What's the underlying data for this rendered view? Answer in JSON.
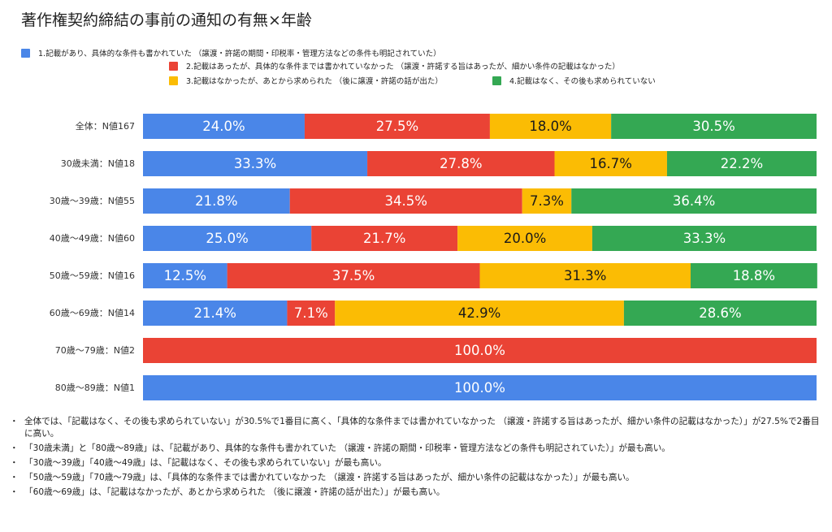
{
  "colors": {
    "blue": "#4a86e8",
    "red": "#ea4335",
    "yellow": "#fbbc04",
    "green": "#34a853"
  },
  "chart_data": {
    "type": "bar",
    "orientation": "horizontal-stacked",
    "title": "著作権契約締結の事前の通知の有無×年齢",
    "categories": [
      "全体：N値167",
      "30歳未満：N値18",
      "30歳〜39歳：N値55",
      "40歳〜49歳：N値60",
      "50歳〜59歳：N値16",
      "60歳〜69歳：N値14",
      "70歳〜79歳：N値2",
      "80歳〜89歳：N値1"
    ],
    "series": [
      {
        "name": "1.記載があり、具体的な条件も書かれていた （譲渡・許諾の期間・印税率・管理方法などの条件も明記されていた）",
        "color": "#4a86e8",
        "values": [
          24.0,
          33.3,
          21.8,
          25.0,
          12.5,
          21.4,
          0,
          100.0
        ]
      },
      {
        "name": "2.記載はあったが、具体的な条件までは書かれていなかった （譲渡・許諾する旨はあったが、細かい条件の記載はなかった）",
        "color": "#ea4335",
        "values": [
          27.5,
          27.8,
          34.5,
          21.7,
          37.5,
          7.1,
          100.0,
          0
        ]
      },
      {
        "name": "3.記載はなかったが、あとから求められた （後に譲渡・許諾の話が出た）",
        "color": "#fbbc04",
        "values": [
          18.0,
          16.7,
          7.3,
          20.0,
          31.3,
          42.9,
          0,
          0
        ]
      },
      {
        "name": "4.記載はなく、その後も求められていない",
        "color": "#34a853",
        "values": [
          30.5,
          22.2,
          36.4,
          33.3,
          18.8,
          28.6,
          0,
          0
        ]
      }
    ],
    "labels": [
      [
        "24.0%",
        "27.5%",
        "18.0%",
        "30.5%"
      ],
      [
        "33.3%",
        "27.8%",
        "16.7%",
        "22.2%"
      ],
      [
        "21.8%",
        "34.5%",
        "7.3%",
        "36.4%"
      ],
      [
        "25.0%",
        "21.7%",
        "20.0%",
        "33.3%"
      ],
      [
        "12.5%",
        "37.5%",
        "31.3%",
        "18.8%"
      ],
      [
        "21.4%",
        "7.1%",
        "42.9%",
        "28.6%"
      ],
      [
        "",
        "100.0%",
        "",
        ""
      ],
      [
        "100.0%",
        "",
        "",
        ""
      ]
    ],
    "xlim": [
      0,
      100
    ],
    "grid": false,
    "legend": "top"
  },
  "notes": [
    "全体では、「記載はなく、その後も求められていない」が30.5%で1番目に高く、「具体的な条件までは書かれていなかった （譲渡・許諾する旨はあったが、細かい条件の記載はなかった）」が27.5%で2番目に高い。",
    "「30歳未満」と「80歳〜89歳」は、「記載があり、具体的な条件も書かれていた （譲渡・許諾の期間・印税率・管理方法などの条件も明記されていた）」が最も高い。",
    "「30歳〜39歳」「40歳〜49歳」は、「記載はなく、その後も求められていない」が最も高い。",
    "「50歳〜59歳」「70歳〜79歳」は、「具体的な条件までは書かれていなかった （譲渡・許諾する旨はあったが、細かい条件の記載はなかった）」が最も高い。",
    "「60歳〜69歳」は、「記載はなかったが、あとから求められた （後に譲渡・許諾の話が出た）」が最も高い。"
  ],
  "bullet": "・"
}
